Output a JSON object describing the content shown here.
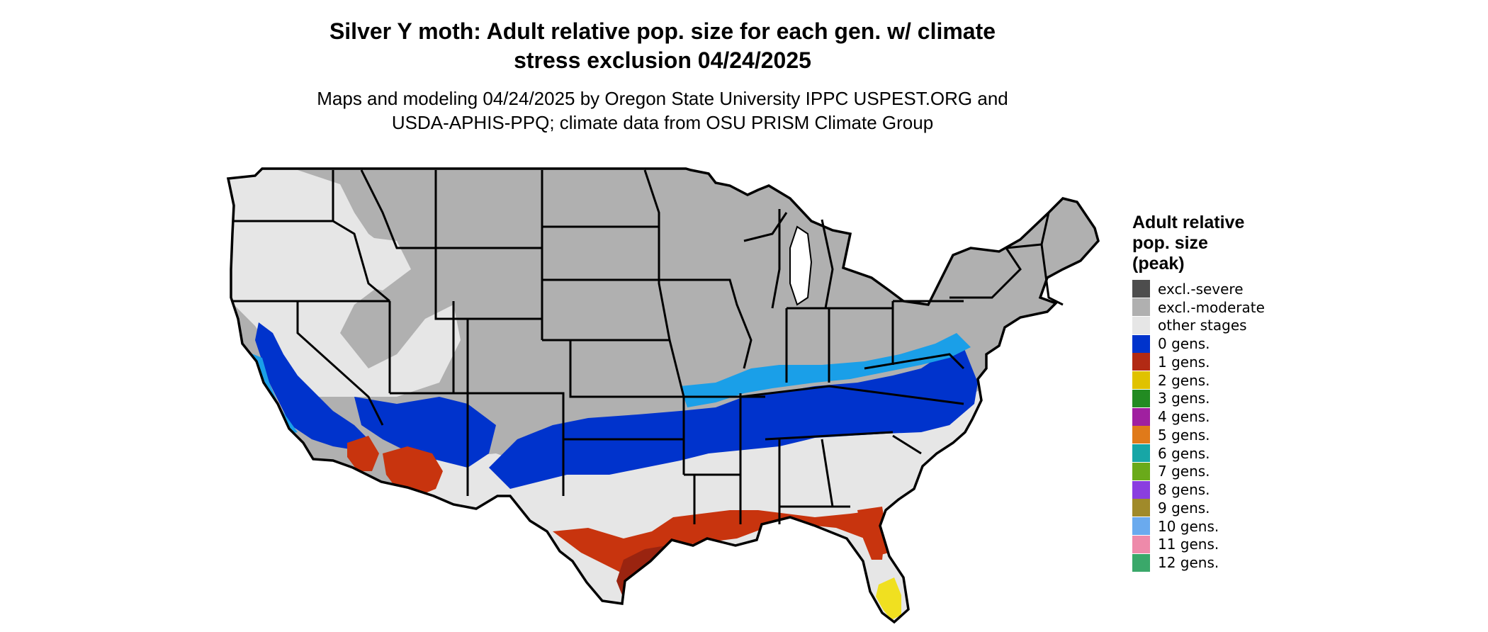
{
  "title": {
    "line1": "Silver Y moth: Adult relative pop. size for each gen. w/ climate",
    "line2": "stress exclusion 04/24/2025"
  },
  "subtitle": {
    "line1": "Maps and modeling 04/24/2025 by Oregon State University IPPC USPEST.ORG and",
    "line2": "USDA-APHIS-PPQ; climate data from OSU PRISM Climate Group"
  },
  "legend": {
    "title_lines": [
      "Adult relative",
      "pop. size",
      "(peak)"
    ],
    "items": [
      {
        "label": "excl.-severe",
        "color": "#4d4d4d"
      },
      {
        "label": "excl.-moderate",
        "color": "#b0b0b0"
      },
      {
        "label": "other stages",
        "color": "#e6e6e6"
      },
      {
        "label": "0 gens.",
        "color": "#0033cc"
      },
      {
        "label": "1 gens.",
        "color": "#b22a14"
      },
      {
        "label": "2 gens.",
        "color": "#e0c200"
      },
      {
        "label": "3 gens.",
        "color": "#228b22"
      },
      {
        "label": "4 gens.",
        "color": "#a020a0"
      },
      {
        "label": "5 gens.",
        "color": "#e07a1a"
      },
      {
        "label": "6 gens.",
        "color": "#17a6a6"
      },
      {
        "label": "7 gens.",
        "color": "#6aaa1a"
      },
      {
        "label": "8 gens.",
        "color": "#8a3ee0"
      },
      {
        "label": "9 gens.",
        "color": "#a08a2a"
      },
      {
        "label": "10 gens.",
        "color": "#6aaaee"
      },
      {
        "label": "11 gens.",
        "color": "#ee8aaa"
      },
      {
        "label": "12 gens.",
        "color": "#3aa86a"
      }
    ]
  },
  "map": {
    "colors": {
      "excluded_moderate": "#b0b0b0",
      "other_stages": "#e6e6e6",
      "gen0": "#0033cc",
      "gen0_light": "#1a9fe8",
      "gen1": "#c8340e",
      "gen1_dark": "#9a2410",
      "gen2": "#f0e020",
      "border": "#000000"
    }
  }
}
